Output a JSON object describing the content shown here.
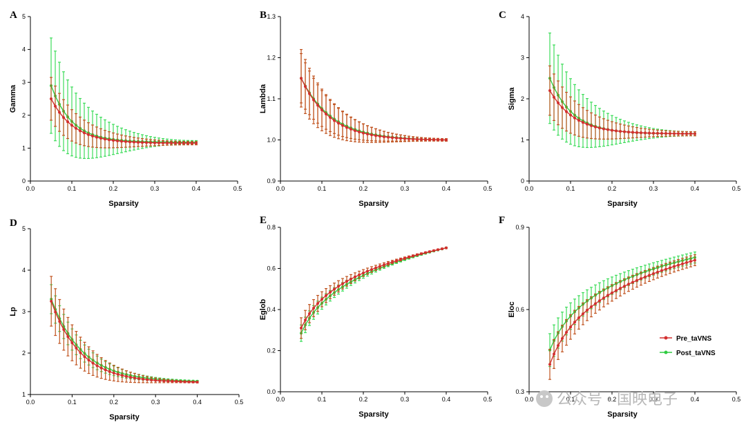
{
  "colors": {
    "pre": "#d32f2f",
    "post": "#2ecc40",
    "err_pre": "#c0531f",
    "err_post": "#3ddc5a",
    "axis": "#000000"
  },
  "legend": {
    "items": [
      {
        "label": "Pre_taVNS",
        "series": "pre"
      },
      {
        "label": "Post_taVNS",
        "series": "post"
      }
    ],
    "placement": "right of panel F"
  },
  "watermark": {
    "text": "公众号 · 国映电子",
    "icon": "wechat-icon"
  },
  "chart_data": [
    {
      "type": "line",
      "letter": "A",
      "ylabel": "Gamma",
      "xlabel": "Sparsity",
      "xlim": [
        0,
        0.5
      ],
      "ylim": [
        0,
        5
      ],
      "xticks": [
        "0.0",
        "0.1",
        "0.2",
        "0.3",
        "0.4",
        "0.5"
      ],
      "yticks": [
        "0",
        "1",
        "2",
        "3",
        "4",
        "5"
      ],
      "x_range": [
        0.05,
        0.4
      ],
      "n_points": 36,
      "series": [
        {
          "name": "Pre_taVNS",
          "start": 2.5,
          "end": 1.15,
          "decay": 0.055,
          "err_start": 0.65,
          "err_end": 0.05,
          "cap": "pre"
        },
        {
          "name": "Post_taVNS",
          "start": 2.9,
          "end": 1.18,
          "decay": 0.05,
          "err_start": 1.45,
          "err_end": 0.05,
          "cap": "post"
        }
      ]
    },
    {
      "type": "line",
      "letter": "B",
      "ylabel": "Lambda",
      "xlabel": "Sparsity",
      "xlim": [
        0,
        0.5
      ],
      "ylim": [
        0.9,
        1.3
      ],
      "xticks": [
        "0.0",
        "0.1",
        "0.2",
        "0.3",
        "0.4",
        "0.5"
      ],
      "yticks": [
        "0.9",
        "1.0",
        "1.1",
        "1.2",
        "1.3"
      ],
      "x_range": [
        0.05,
        0.4
      ],
      "n_points": 36,
      "series": [
        {
          "name": "Pre_taVNS",
          "start": 1.15,
          "end": 1.0,
          "decay": 0.07,
          "err_start": 0.07,
          "err_end": 0.003,
          "cap": "pre"
        },
        {
          "name": "Post_taVNS",
          "start": 1.15,
          "end": 1.0,
          "decay": 0.075,
          "err_start": 0.06,
          "err_end": 0.003,
          "cap": "pre"
        }
      ]
    },
    {
      "type": "line",
      "letter": "C",
      "ylabel": "Sigma",
      "xlabel": "Sparsity",
      "xlim": [
        0,
        0.5
      ],
      "ylim": [
        0,
        4
      ],
      "xticks": [
        "0.0",
        "0.1",
        "0.2",
        "0.3",
        "0.4",
        "0.5"
      ],
      "yticks": [
        "0",
        "1",
        "2",
        "3",
        "4"
      ],
      "x_range": [
        0.05,
        0.4
      ],
      "n_points": 36,
      "series": [
        {
          "name": "Pre_taVNS",
          "start": 2.2,
          "end": 1.15,
          "decay": 0.06,
          "err_start": 0.6,
          "err_end": 0.05,
          "cap": "pre"
        },
        {
          "name": "Post_taVNS",
          "start": 2.5,
          "end": 1.15,
          "decay": 0.055,
          "err_start": 1.1,
          "err_end": 0.05,
          "cap": "post"
        }
      ]
    },
    {
      "type": "line",
      "letter": "D",
      "ylabel": "Lp",
      "xlabel": "Sparsity",
      "xlim": [
        0,
        0.5
      ],
      "ylim": [
        1,
        5
      ],
      "xticks": [
        "0.0",
        "0.1",
        "0.2",
        "0.3",
        "0.4",
        "0.5"
      ],
      "yticks": [
        "1",
        "2",
        "3",
        "4",
        "5"
      ],
      "x_range": [
        0.05,
        0.4
      ],
      "n_points": 36,
      "series": [
        {
          "name": "Pre_taVNS",
          "start": 3.25,
          "end": 1.3,
          "decay": 0.07,
          "err_start": 0.6,
          "err_end": 0.02,
          "cap": "pre"
        },
        {
          "name": "Post_taVNS",
          "start": 3.3,
          "end": 1.32,
          "decay": 0.075,
          "err_start": 0.35,
          "err_end": 0.02,
          "cap": "post"
        }
      ]
    },
    {
      "type": "line",
      "letter": "E",
      "ylabel": "Eglob",
      "xlabel": "Sparsity",
      "xlim": [
        0,
        0.5
      ],
      "ylim": [
        0.0,
        0.8
      ],
      "xticks": [
        "0.0",
        "0.1",
        "0.2",
        "0.3",
        "0.4",
        "0.5"
      ],
      "yticks": [
        "0.0",
        "0.2",
        "0.4",
        "0.6",
        "0.8"
      ],
      "x_range": [
        0.05,
        0.4
      ],
      "n_points": 36,
      "series": [
        {
          "name": "Pre_taVNS",
          "start": 0.31,
          "end": 0.7,
          "shape": "log",
          "err_start": 0.05,
          "err_end": 0.003,
          "cap": "pre"
        },
        {
          "name": "Post_taVNS",
          "start": 0.3,
          "end": 0.7,
          "shape": "log",
          "offset": -0.015,
          "err_start": 0.04,
          "err_end": 0.003,
          "cap": "post"
        }
      ]
    },
    {
      "type": "line",
      "letter": "F",
      "ylabel": "Eloc",
      "xlabel": "Sparsity",
      "xlim": [
        0,
        0.5
      ],
      "ylim": [
        0.3,
        0.9
      ],
      "xticks": [
        "0.0",
        "0.1",
        "0.2",
        "0.3",
        "0.4",
        "0.5"
      ],
      "yticks": [
        "0.3",
        "0.6",
        "0.9"
      ],
      "x_range": [
        0.05,
        0.4
      ],
      "n_points": 36,
      "series": [
        {
          "name": "Pre_taVNS",
          "start": 0.4,
          "end": 0.78,
          "shape": "log",
          "err_start": 0.055,
          "err_end": 0.02,
          "cap": "pre"
        },
        {
          "name": "Post_taVNS",
          "start": 0.44,
          "end": 0.79,
          "shape": "log",
          "offset": 0.012,
          "err_start": 0.06,
          "err_end": 0.02,
          "cap": "post"
        }
      ]
    }
  ]
}
